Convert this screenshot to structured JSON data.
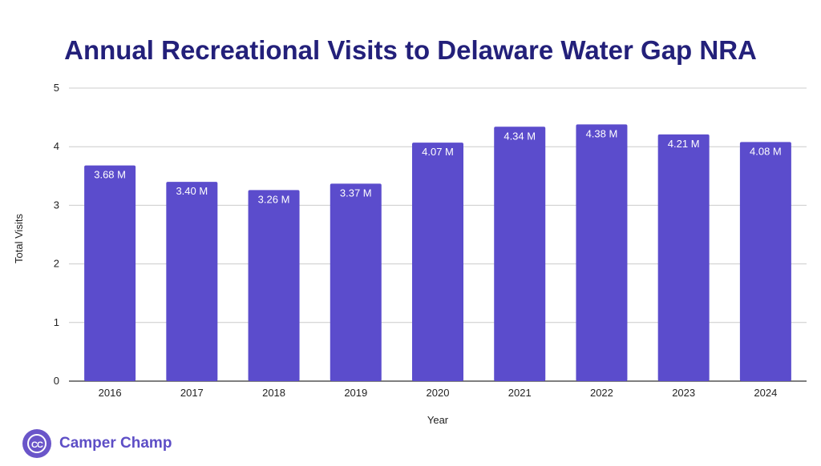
{
  "chart_data": {
    "type": "bar",
    "title": "Annual Recreational Visits to Delaware Water Gap NRA",
    "xlabel": "Year",
    "ylabel": "Total Visits",
    "categories": [
      "2016",
      "2017",
      "2018",
      "2019",
      "2020",
      "2021",
      "2022",
      "2023",
      "2024"
    ],
    "values": [
      3.68,
      3.4,
      3.26,
      3.37,
      4.07,
      4.34,
      4.38,
      4.21,
      4.08
    ],
    "data_labels": [
      "3.68 M",
      "3.40 M",
      "3.26 M",
      "3.37 M",
      "4.07 M",
      "4.34 M",
      "4.38 M",
      "4.21 M",
      "4.08 M"
    ],
    "ylim": [
      0,
      5
    ],
    "yticks": [
      "0",
      "1",
      "2",
      "3",
      "4",
      "5"
    ],
    "grid": true,
    "bar_color": "#5b4ccc",
    "title_color": "#23207a"
  },
  "brand": {
    "logo_initials": "CC",
    "name": "Camper Champ",
    "color": "#5d4ec6"
  }
}
